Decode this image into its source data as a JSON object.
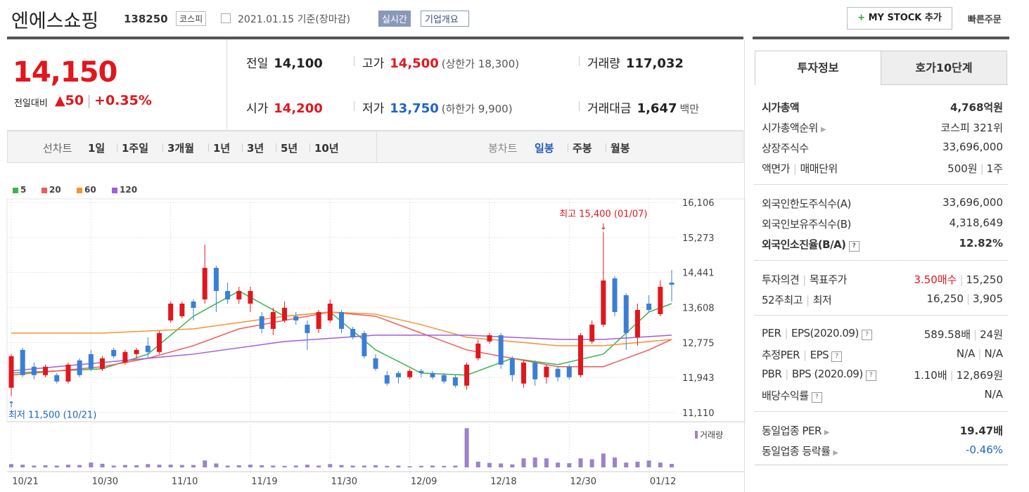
{
  "header": {
    "name": "엔에스쇼핑",
    "code": "138250",
    "market": "코스피",
    "date": "2021.01.15 기준(장마감)",
    "realtime": "실시간",
    "overview": "기업개요",
    "mystock": "MY STOCK 추가",
    "quick": "빠른주문"
  },
  "quote": {
    "price": "14,150",
    "change_label": "전일대비",
    "change": "50",
    "change_pct": "+0.35%",
    "up_color": "#e0171d",
    "stats": [
      {
        "label": "전일",
        "value": "14,100"
      },
      {
        "label": "고가",
        "value": "14,500",
        "extra": "(상한가 18,300)",
        "color": "#e0171d"
      },
      {
        "label": "거래량",
        "value": "117,032"
      },
      {
        "label": "시가",
        "value": "14,200",
        "color": "#e0171d"
      },
      {
        "label": "저가",
        "value": "13,750",
        "extra": "(하한가 9,900)",
        "color": "#1f63c8"
      },
      {
        "label": "거래대금",
        "value": "1,647",
        "extra": "백만"
      }
    ]
  },
  "tabs": {
    "line_label": "선차트",
    "line": [
      "1일",
      "1주일",
      "3개월",
      "1년",
      "3년",
      "5년",
      "10년"
    ],
    "candle_label": "봉차트",
    "candle": [
      "일봉",
      "주봉",
      "월봉"
    ]
  },
  "chart_data": {
    "type": "candlestick",
    "categories": [
      "10/21",
      null,
      null,
      null,
      null,
      null,
      null,
      "10/30",
      null,
      null,
      null,
      null,
      null,
      null,
      "11/10",
      null,
      null,
      null,
      null,
      null,
      null,
      "11/19",
      null,
      null,
      null,
      null,
      null,
      null,
      "11/30",
      null,
      null,
      null,
      null,
      null,
      null,
      "12/09",
      null,
      null,
      null,
      null,
      null,
      null,
      "12/18",
      null,
      null,
      null,
      null,
      null,
      null,
      "12/30",
      null,
      null,
      null,
      null,
      null,
      null,
      "01/12",
      null,
      null
    ],
    "open": [
      11700,
      12600,
      12200,
      12000,
      12000,
      11850,
      12350,
      12500,
      12150,
      12600,
      12300,
      12500,
      12700,
      12550,
      13300,
      13400,
      13750,
      13800,
      14550,
      14000,
      13800,
      13700,
      13400,
      13100,
      13300,
      13400,
      13200,
      13100,
      13300,
      13500,
      13100,
      13000,
      12400,
      12000,
      12050,
      11950,
      12100,
      12050,
      12000,
      11950,
      11750,
      12400,
      12800,
      12950,
      12400,
      11800,
      12300,
      11950,
      12150,
      12200,
      12000,
      12800,
      13200,
      14300,
      13900,
      12900,
      13700,
      13450,
      14200
    ],
    "high": [
      12500,
      12650,
      12300,
      12250,
      12050,
      12300,
      12400,
      12600,
      12450,
      12650,
      12600,
      12650,
      12900,
      13050,
      13750,
      13750,
      13800,
      15100,
      14600,
      14200,
      14100,
      14100,
      13500,
      13600,
      13750,
      13500,
      13300,
      13550,
      13800,
      13550,
      13150,
      13050,
      12500,
      12100,
      12100,
      12150,
      12150,
      12100,
      12050,
      12000,
      12300,
      12850,
      13000,
      13000,
      12450,
      12350,
      12350,
      12250,
      12200,
      12250,
      13000,
      13300,
      15400,
      14350,
      13950,
      13700,
      13900,
      14250,
      14500
    ],
    "low": [
      11500,
      11950,
      11900,
      11950,
      11800,
      11800,
      11950,
      12100,
      12100,
      12400,
      12250,
      12400,
      12400,
      12500,
      13250,
      13350,
      13300,
      13700,
      13500,
      13700,
      13700,
      13500,
      13000,
      12950,
      13250,
      13200,
      12600,
      13000,
      13250,
      13000,
      12850,
      12400,
      12100,
      11750,
      11800,
      11900,
      11950,
      11900,
      11800,
      11700,
      11650,
      12350,
      12750,
      12150,
      11850,
      11700,
      11750,
      11800,
      11850,
      11900,
      11950,
      12750,
      13150,
      13400,
      12600,
      12700,
      13500,
      13400,
      13750
    ],
    "close": [
      12450,
      12000,
      12000,
      12200,
      11850,
      12250,
      12000,
      12150,
      12400,
      12450,
      12550,
      12600,
      12550,
      13000,
      13700,
      13700,
      13600,
      14550,
      14000,
      13800,
      14000,
      14000,
      13100,
      13500,
      13600,
      13300,
      13000,
      13500,
      13700,
      13100,
      12900,
      12450,
      12150,
      11800,
      11950,
      12100,
      12050,
      11950,
      11850,
      11750,
      12250,
      12750,
      12950,
      12250,
      12000,
      12300,
      11900,
      12200,
      11950,
      11950,
      12950,
      13200,
      14250,
      13500,
      13000,
      13550,
      13550,
      14100,
      14150
    ],
    "up_color": "#e0171d",
    "down_color": "#3a7fd5",
    "ylim": [
      11110,
      16106
    ],
    "yticks": [
      {
        "value": 16106,
        "label": "16,106"
      },
      {
        "value": 15273,
        "label": "15,273"
      },
      {
        "value": 14441,
        "label": "14,441"
      },
      {
        "value": 13608,
        "label": "13,608"
      },
      {
        "value": 12775,
        "label": "12,775"
      },
      {
        "value": 11943,
        "label": "11,943"
      },
      {
        "value": 11110,
        "label": "11,110"
      }
    ],
    "moving_averages": [
      {
        "name": "5",
        "color": "#3fb34f",
        "x": [
          0,
          4,
          8,
          12,
          16,
          20,
          24,
          28,
          32,
          36,
          40,
          44,
          48,
          52,
          56,
          58
        ],
        "values": [
          12050,
          12100,
          12150,
          12500,
          13400,
          14000,
          13400,
          13500,
          12600,
          12050,
          12000,
          12400,
          12250,
          12500,
          13500,
          13700
        ]
      },
      {
        "name": "20",
        "color": "#f05a5a",
        "x": [
          0,
          4,
          8,
          12,
          16,
          20,
          24,
          28,
          32,
          36,
          40,
          44,
          48,
          52,
          56,
          58
        ],
        "values": [
          12000,
          12100,
          12200,
          12400,
          12700,
          13100,
          13300,
          13500,
          13400,
          13000,
          12600,
          12400,
          12200,
          12200,
          12600,
          12850
        ]
      },
      {
        "name": "60",
        "color": "#f59333",
        "x": [
          0,
          8,
          16,
          24,
          28,
          32,
          36,
          40,
          44,
          48,
          52,
          58
        ],
        "values": [
          13000,
          13000,
          13100,
          13400,
          13500,
          13450,
          13200,
          12900,
          12800,
          12700,
          12700,
          12850
        ]
      },
      {
        "name": "120",
        "color": "#a05ed8",
        "x": [
          0,
          8,
          16,
          24,
          32,
          40,
          48,
          52,
          58
        ],
        "values": [
          12100,
          12300,
          12500,
          12800,
          12950,
          12950,
          12850,
          12850,
          12950
        ]
      }
    ],
    "volume_label": "거래량",
    "volume_color": "#9b83c9",
    "volume_ylim": [
      0,
      1400000
    ],
    "volume": [
      110000,
      90000,
      60000,
      70000,
      60000,
      90000,
      80000,
      160000,
      120000,
      60000,
      80000,
      70000,
      110000,
      90000,
      90000,
      80000,
      80000,
      230000,
      130000,
      60000,
      70000,
      90000,
      70000,
      60000,
      50000,
      60000,
      90000,
      60000,
      110000,
      80000,
      60000,
      60000,
      70000,
      50000,
      60000,
      40000,
      50000,
      60000,
      50000,
      60000,
      1300000,
      190000,
      150000,
      130000,
      100000,
      300000,
      330000,
      300000,
      160000,
      140000,
      300000,
      270000,
      460000,
      330000,
      160000,
      190000,
      230000,
      160000,
      117032
    ],
    "annotations": {
      "high": "최고 15,400 (01/07)",
      "low": "최저 11,500 (10/21)"
    }
  },
  "invest": {
    "tabs": [
      "투자정보",
      "호가10단계"
    ],
    "groups": [
      [
        {
          "label": [
            "시가총액"
          ],
          "value": [
            "4,768억원"
          ]
        },
        {
          "label": [
            "시가총액순위"
          ],
          "value": [
            "코스피 321위"
          ]
        },
        {
          "label": [
            "상장주식수"
          ],
          "value": [
            "33,696,000"
          ]
        },
        {
          "label": [
            "액면가",
            "매매단위"
          ],
          "value": [
            "500원",
            "1주"
          ]
        }
      ],
      [
        {
          "label": [
            "외국인한도주식수(A)"
          ],
          "value": [
            "33,696,000"
          ]
        },
        {
          "label": [
            "외국인보유주식수(B)"
          ],
          "value": [
            "4,318,649"
          ]
        },
        {
          "label": [
            "외국인소진율(B/A)"
          ],
          "value": [
            "12.82%"
          ]
        }
      ],
      [
        {
          "label": [
            "투자의견",
            "목표주가"
          ],
          "value": [
            "3.50매수",
            "15,250"
          ]
        },
        {
          "label": [
            "52주최고",
            "최저"
          ],
          "value": [
            "16,250",
            "3,905"
          ]
        }
      ],
      [
        {
          "label": [
            "PER",
            "EPS(2020.09)"
          ],
          "value": [
            "589.58배",
            "24원"
          ]
        },
        {
          "label": [
            "추정PER",
            "EPS"
          ],
          "value": [
            "N/A",
            "N/A"
          ]
        },
        {
          "label": [
            "PBR",
            "BPS (2020.09)"
          ],
          "value": [
            "1.10배",
            "12,869원"
          ]
        },
        {
          "label": [
            "배당수익률"
          ],
          "value": [
            "N/A"
          ]
        }
      ],
      [
        {
          "label": [
            "동일업종 PER"
          ],
          "value": [
            "19.47배"
          ]
        },
        {
          "label": [
            "동일업종 등락률"
          ],
          "value": [
            "-0.46%"
          ]
        }
      ]
    ]
  }
}
